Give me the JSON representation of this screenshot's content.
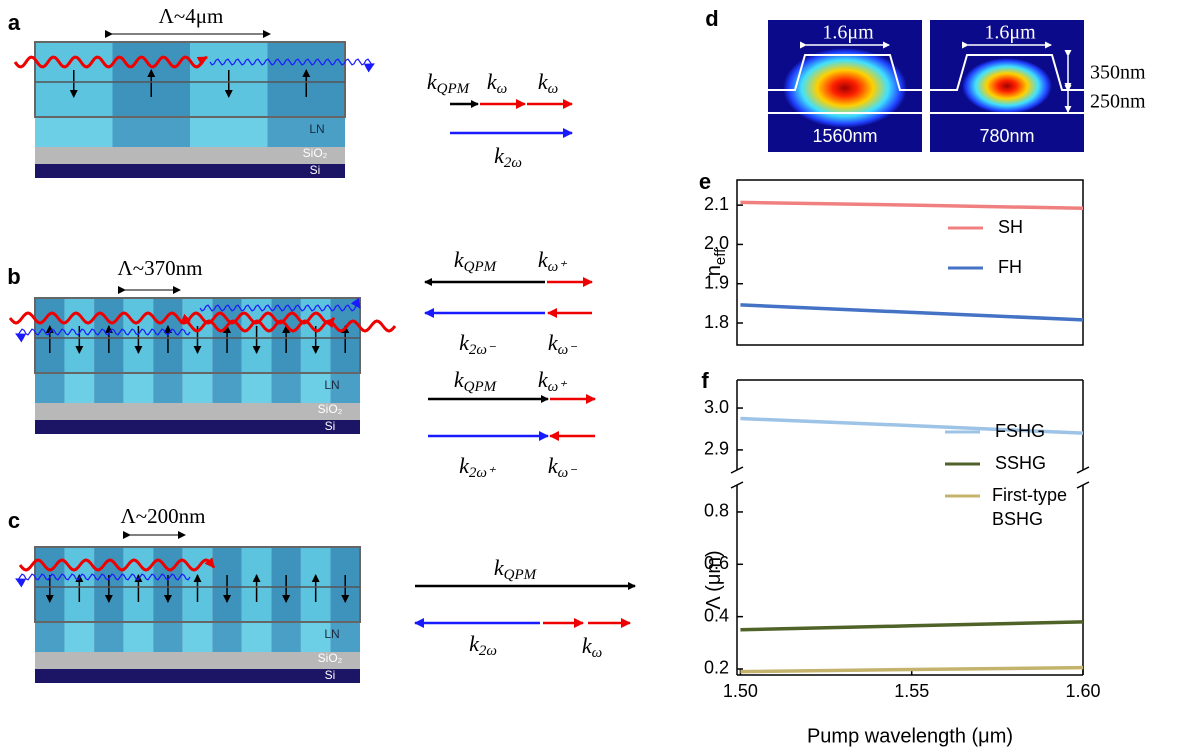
{
  "diagrams": [
    {
      "label": "a",
      "period": "Λ~4μm",
      "layers": {
        "ln": "LN",
        "oxide": "SiO₂",
        "substrate": "Si"
      },
      "vectors": [
        {
          "symbol": "k",
          "sub": "QPM"
        },
        {
          "symbol": "k",
          "sub": "ω"
        },
        {
          "symbol": "k",
          "sub": "ω"
        },
        {
          "symbol": "k",
          "sub": "2ω"
        }
      ]
    },
    {
      "label": "b",
      "period": "Λ~370nm",
      "layers": {
        "ln": "LN",
        "oxide": "SiO₂",
        "substrate": "Si"
      },
      "vectors": [
        {
          "symbol": "k",
          "sub": "QPM"
        },
        {
          "symbol": "k",
          "sub": "ω⁺"
        },
        {
          "symbol": "k",
          "sub": "2ω⁻"
        },
        {
          "symbol": "k",
          "sub": "ω⁻"
        },
        {
          "symbol": "k",
          "sub": "QPM"
        },
        {
          "symbol": "k",
          "sub": "ω⁺"
        },
        {
          "symbol": "k",
          "sub": "2ω⁺"
        },
        {
          "symbol": "k",
          "sub": "ω⁻"
        }
      ]
    },
    {
      "label": "c",
      "period": "Λ~200nm",
      "layers": {
        "ln": "LN",
        "oxide": "SiO₂",
        "substrate": "Si"
      },
      "vectors": [
        {
          "symbol": "k",
          "sub": "QPM"
        },
        {
          "symbol": "k",
          "sub": "2ω"
        },
        {
          "symbol": "k",
          "sub": "ω"
        }
      ]
    }
  ],
  "mode_profiles": {
    "label": "d",
    "width": "1.6μm",
    "heights": [
      "350nm",
      "250nm"
    ],
    "wavelengths": [
      "1560nm",
      "780nm"
    ]
  },
  "chart_data": [
    {
      "type": "line",
      "label": "e",
      "ylabel": "n",
      "ylabel_subscript": "eff",
      "x": [
        1.5,
        1.55,
        1.6
      ],
      "xlim": [
        1.499,
        1.6
      ],
      "ylim": [
        1.744,
        2.164
      ],
      "yticks": [
        1.8,
        1.9,
        {
          "value": 2,
          "label": "2.0"
        },
        2.1
      ],
      "legend": "upper right",
      "series": [
        {
          "name": "SH",
          "color": "#f08080",
          "values": [
            2.107,
            2.1,
            2.092
          ]
        },
        {
          "name": "FH",
          "color": "#4472c4",
          "values": [
            1.846,
            1.827,
            1.808
          ]
        }
      ]
    },
    {
      "type": "line",
      "label": "f",
      "ylabel": "Λ (μm)",
      "xlabel": "Pump wavelength (μm)",
      "x": [
        1.5,
        1.55,
        1.6
      ],
      "xlim": [
        1.499,
        1.6
      ],
      "xticks": [
        {
          "value": 1.5,
          "label": "1.50"
        },
        {
          "value": 1.55,
          "label": "1.55"
        },
        {
          "value": 1.6,
          "label": "1.60"
        }
      ],
      "ylim": [
        0.177,
        0.903
      ],
      "yticks": [
        0.2,
        0.4,
        0.6,
        0.8
      ],
      "y2lim": [
        2.852,
        3.067
      ],
      "y2ticks": [
        2.9,
        {
          "value": 3,
          "label": "3.0"
        }
      ],
      "broken_axis": true,
      "legend": "center right",
      "series": [
        {
          "name": "FSHG",
          "color": "#9dc3e6",
          "axis": "y2",
          "values": [
            2.975,
            2.958,
            2.94
          ]
        },
        {
          "name": "SSHG",
          "color": "#4f6228",
          "values": [
            0.35,
            0.365,
            0.38
          ]
        },
        {
          "name": "First-type BSHG",
          "color": "#c4b36c",
          "values": [
            0.19,
            0.198,
            0.205
          ]
        }
      ]
    }
  ]
}
